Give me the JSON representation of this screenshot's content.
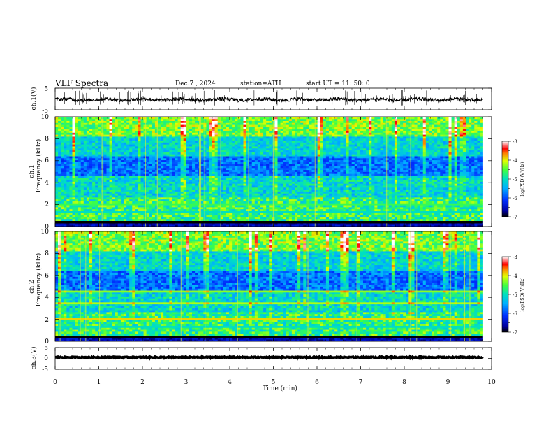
{
  "header": {
    "title": "VLF  Spectra",
    "date": "Dec.7  , 2024",
    "station": "station=ATH",
    "start_ut": "start  UT  =    11: 50: 0"
  },
  "colorbar": {
    "label": "log(PSD)(V²/Hz)",
    "ticks": [
      "-3",
      "-4",
      "-5",
      "-6",
      "-7"
    ]
  },
  "chart_data": [
    {
      "type": "line",
      "panel": "ch1-waveform",
      "ylabel": "ch.1(V)",
      "ylim": [
        -5,
        5
      ],
      "yticks": [
        "5",
        "-5"
      ],
      "xlim": [
        0,
        10
      ],
      "mean_value": -0.3
    },
    {
      "type": "heatmap",
      "panel": "ch1-spectrogram",
      "ylabel_top": "ch.1",
      "ylabel": "Frequency  (kHz)",
      "ylim": [
        0,
        10
      ],
      "yticks": [
        "0",
        "2",
        "4",
        "6",
        "8",
        "10"
      ],
      "xlim": [
        0,
        10
      ],
      "data_end_min": 9.8,
      "color_range": [
        -7,
        -3
      ]
    },
    {
      "type": "heatmap",
      "panel": "ch2-spectrogram",
      "ylabel_top": "ch.2",
      "ylabel": "Frequency  (kHz)",
      "ylim": [
        0,
        10
      ],
      "yticks": [
        "0",
        "2",
        "4",
        "6",
        "8",
        "10"
      ],
      "xlim": [
        0,
        10
      ],
      "data_end_min": 9.8,
      "color_range": [
        -7,
        -3
      ]
    },
    {
      "type": "line",
      "panel": "ch3-waveform",
      "ylabel": "ch.3(V)",
      "ylim": [
        -5,
        5
      ],
      "yticks": [
        "5",
        "0",
        "-5"
      ],
      "xlim": [
        0,
        10
      ],
      "mean_value": 0.5
    }
  ],
  "xaxis": {
    "label": "Time  (min)",
    "ticks": [
      "0",
      "1",
      "2",
      "3",
      "4",
      "5",
      "6",
      "7",
      "8",
      "9",
      "10"
    ]
  }
}
